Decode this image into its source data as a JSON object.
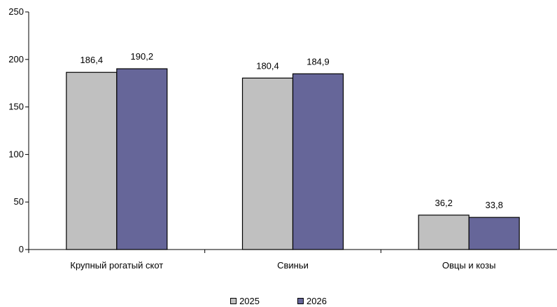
{
  "chart_data": {
    "type": "bar",
    "categories": [
      "Крупный рогатый скот",
      "Свиньи",
      "Овцы и козы"
    ],
    "series": [
      {
        "name": "2025",
        "values": [
          186.4,
          180.4,
          36.2
        ],
        "labels": [
          "186,4",
          "180,4",
          "36,2"
        ],
        "color": "#c0c0c0"
      },
      {
        "name": "2026",
        "values": [
          190.2,
          184.9,
          33.8
        ],
        "labels": [
          "190,2",
          "184,9",
          "33,8"
        ],
        "color": "#666699"
      }
    ],
    "yticks": [
      0,
      50,
      100,
      150,
      200,
      250
    ],
    "ylim": [
      0,
      250
    ],
    "grid": false,
    "legend_position": "bottom"
  }
}
